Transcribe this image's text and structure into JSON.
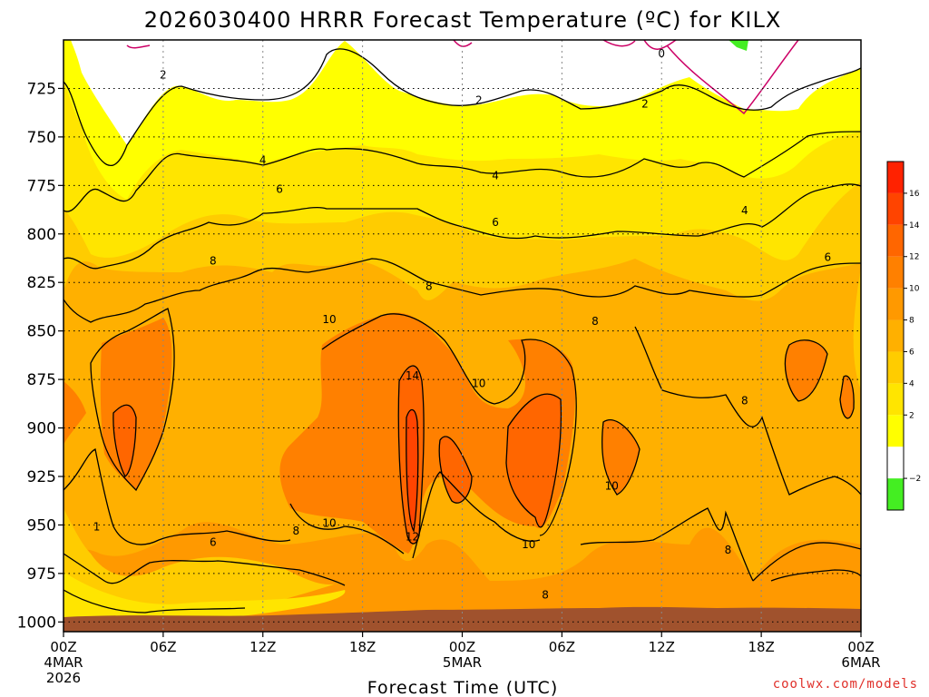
{
  "chart_data": {
    "type": "heatmap",
    "title": "2026030400 HRRR Forecast Temperature (ºC) for KILX",
    "xlabel": "Forecast Time (UTC)",
    "ylabel": "",
    "x_ticks": [
      {
        "hour": 0,
        "label": "00Z",
        "sub1": "4MAR",
        "sub2": "2026"
      },
      {
        "hour": 6,
        "label": "06Z",
        "sub1": "",
        "sub2": ""
      },
      {
        "hour": 12,
        "label": "12Z",
        "sub1": "",
        "sub2": ""
      },
      {
        "hour": 18,
        "label": "18Z",
        "sub1": "",
        "sub2": ""
      },
      {
        "hour": 24,
        "label": "00Z",
        "sub1": "5MAR",
        "sub2": ""
      },
      {
        "hour": 30,
        "label": "06Z",
        "sub1": "",
        "sub2": ""
      },
      {
        "hour": 36,
        "label": "12Z",
        "sub1": "",
        "sub2": ""
      },
      {
        "hour": 42,
        "label": "18Z",
        "sub1": "",
        "sub2": ""
      },
      {
        "hour": 48,
        "label": "00Z",
        "sub1": "6MAR",
        "sub2": ""
      }
    ],
    "y_ticks": [
      725,
      750,
      775,
      800,
      825,
      850,
      875,
      900,
      925,
      950,
      975,
      1000
    ],
    "xlim_hours": [
      0,
      48
    ],
    "ylim_hpa": [
      700,
      1005
    ],
    "grid": true,
    "colorbar": {
      "levels": [
        -4,
        -2,
        0,
        2,
        4,
        6,
        8,
        10,
        12,
        14,
        16,
        18
      ],
      "tick_labels": [
        "−2",
        "2",
        "4",
        "6",
        "8",
        "10",
        "12",
        "14",
        "16"
      ],
      "tick_values": [
        -2,
        2,
        4,
        6,
        8,
        10,
        12,
        14,
        16
      ],
      "colors": [
        "#44ee22",
        "#ffffff",
        "#ffff00",
        "#ffe500",
        "#ffcc00",
        "#ffb000",
        "#ff9900",
        "#ff8000",
        "#ff6600",
        "#ff4400",
        "#ff2200"
      ]
    },
    "contour_labels": [
      {
        "text": "2",
        "hour": 6.0,
        "hpa": 718
      },
      {
        "text": "2",
        "hour": 25.0,
        "hpa": 731
      },
      {
        "text": "2",
        "hour": 35.0,
        "hpa": 733
      },
      {
        "text": "0",
        "hour": 36.0,
        "hpa": 707
      },
      {
        "text": "4",
        "hour": 12.0,
        "hpa": 762
      },
      {
        "text": "4",
        "hour": 26.0,
        "hpa": 770
      },
      {
        "text": "4",
        "hour": 41.0,
        "hpa": 788
      },
      {
        "text": "6",
        "hour": 13.0,
        "hpa": 777
      },
      {
        "text": "6",
        "hour": 26.0,
        "hpa": 794
      },
      {
        "text": "6",
        "hour": 46.0,
        "hpa": 812
      },
      {
        "text": "6",
        "hour": 9.0,
        "hpa": 959
      },
      {
        "text": "8",
        "hour": 9.0,
        "hpa": 814
      },
      {
        "text": "8",
        "hour": 22.0,
        "hpa": 827
      },
      {
        "text": "8",
        "hour": 32.0,
        "hpa": 845
      },
      {
        "text": "8",
        "hour": 41.0,
        "hpa": 886
      },
      {
        "text": "8",
        "hour": 14.0,
        "hpa": 953
      },
      {
        "text": "8",
        "hour": 40.0,
        "hpa": 963
      },
      {
        "text": "8",
        "hour": 29.0,
        "hpa": 986
      },
      {
        "text": "10",
        "hour": 16.0,
        "hpa": 844
      },
      {
        "text": "10",
        "hour": 25.0,
        "hpa": 877
      },
      {
        "text": "10",
        "hour": 33.0,
        "hpa": 930
      },
      {
        "text": "10",
        "hour": 16.0,
        "hpa": 949
      },
      {
        "text": "10",
        "hour": 28.0,
        "hpa": 960
      },
      {
        "text": "12",
        "hour": 21.0,
        "hpa": 956
      },
      {
        "text": "14",
        "hour": 21.0,
        "hpa": 873
      },
      {
        "text": "1",
        "hour": 2.0,
        "hpa": 951
      }
    ],
    "series_note": ""
  },
  "credit": "coolwx.com/models"
}
